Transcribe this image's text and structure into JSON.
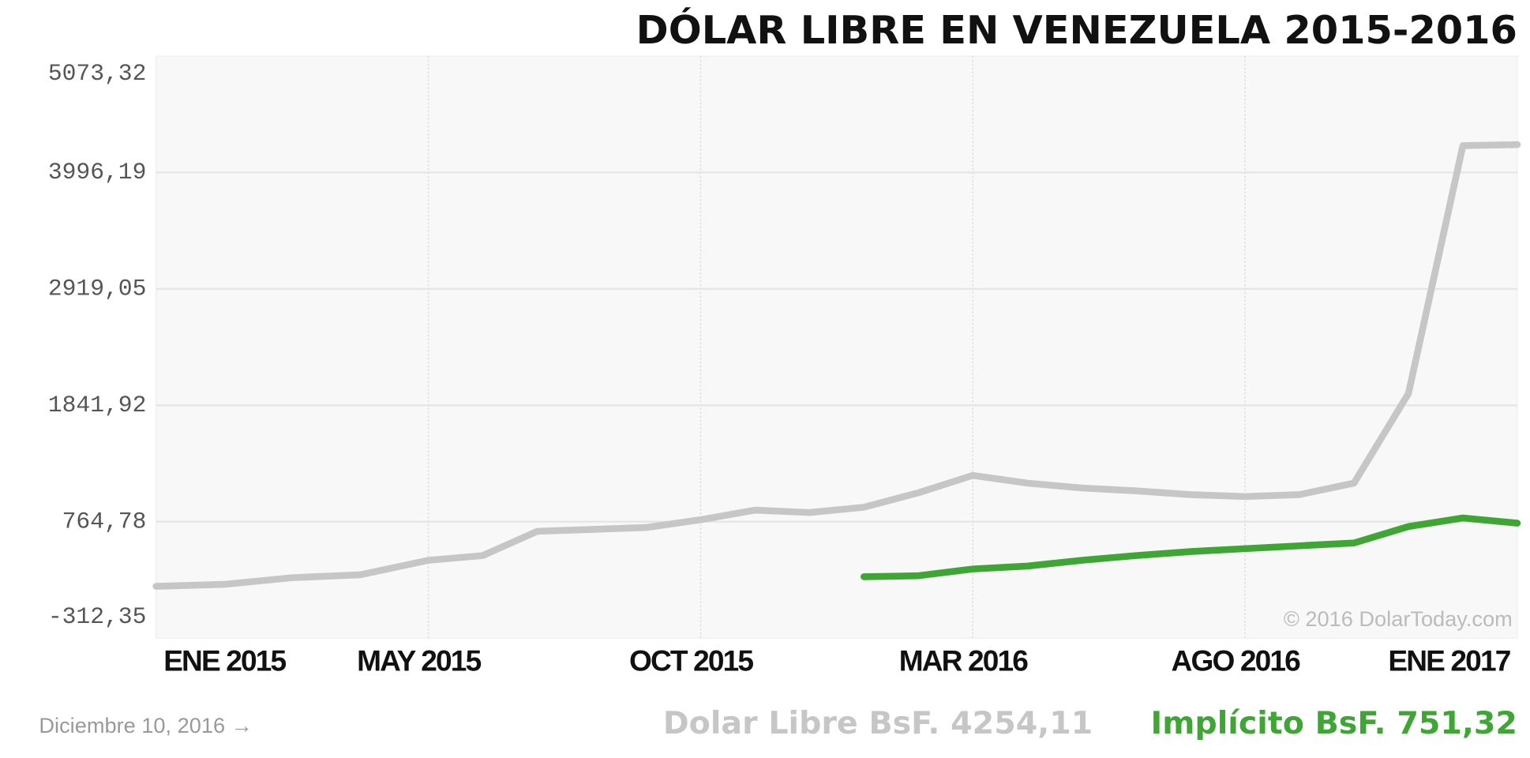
{
  "chart_data": {
    "type": "line",
    "title": "DÓLAR LIBRE EN VENEZUELA 2015-2016",
    "x": [
      "2015-01",
      "2015-02",
      "2015-03",
      "2015-04",
      "2015-05",
      "2015-06",
      "2015-07",
      "2015-08",
      "2015-09",
      "2015-10",
      "2015-11",
      "2015-12",
      "2016-01",
      "2016-02",
      "2016-03",
      "2016-04",
      "2016-05",
      "2016-06",
      "2016-07",
      "2016-08",
      "2016-09",
      "2016-10",
      "2016-11",
      "2016-12",
      "2017-01"
    ],
    "series": [
      {
        "name": "Dolar Libre BsF. 4254,11",
        "color": "#c6c6c6",
        "values": [
          167,
          185,
          247,
          274,
          408,
          452,
          676,
          693,
          711,
          783,
          872,
          850,
          899,
          1032,
          1193,
          1122,
          1077,
          1050,
          1015,
          997,
          1015,
          1122,
          1950,
          4245,
          4254.11
        ]
      },
      {
        "name": "Implícito BsF. 751,32",
        "color": "#3fa535",
        "values": [
          null,
          null,
          null,
          null,
          null,
          null,
          null,
          null,
          null,
          null,
          null,
          null,
          256,
          265,
          327,
          354,
          408,
          452,
          488,
          515,
          542,
          568,
          720,
          800,
          751.32
        ]
      }
    ],
    "ylim": [
      -312.35,
      5073.32
    ],
    "yticks": [
      {
        "value": -312.35,
        "label": "-312,35"
      },
      {
        "value": 764.78,
        "label": "764,78"
      },
      {
        "value": 1841.92,
        "label": "1841,92"
      },
      {
        "value": 2919.05,
        "label": "2919,05"
      },
      {
        "value": 3996.19,
        "label": "3996,19"
      },
      {
        "value": 5073.32,
        "label": "5073,32"
      }
    ],
    "xlim": [
      "2015-01",
      "2017-01"
    ],
    "xticks": [
      {
        "value": "2015-01",
        "label": "ENE 2015"
      },
      {
        "value": "2015-05",
        "label": "MAY 2015"
      },
      {
        "value": "2015-10",
        "label": "OCT 2015"
      },
      {
        "value": "2016-03",
        "label": "MAR 2016"
      },
      {
        "value": "2016-08",
        "label": "AGO 2016"
      },
      {
        "value": "2017-01",
        "label": "ENE 2017"
      }
    ],
    "grid": true,
    "watermark": "© 2016 DolarToday.com",
    "date_note": "Diciembre 10, 2016 →"
  }
}
